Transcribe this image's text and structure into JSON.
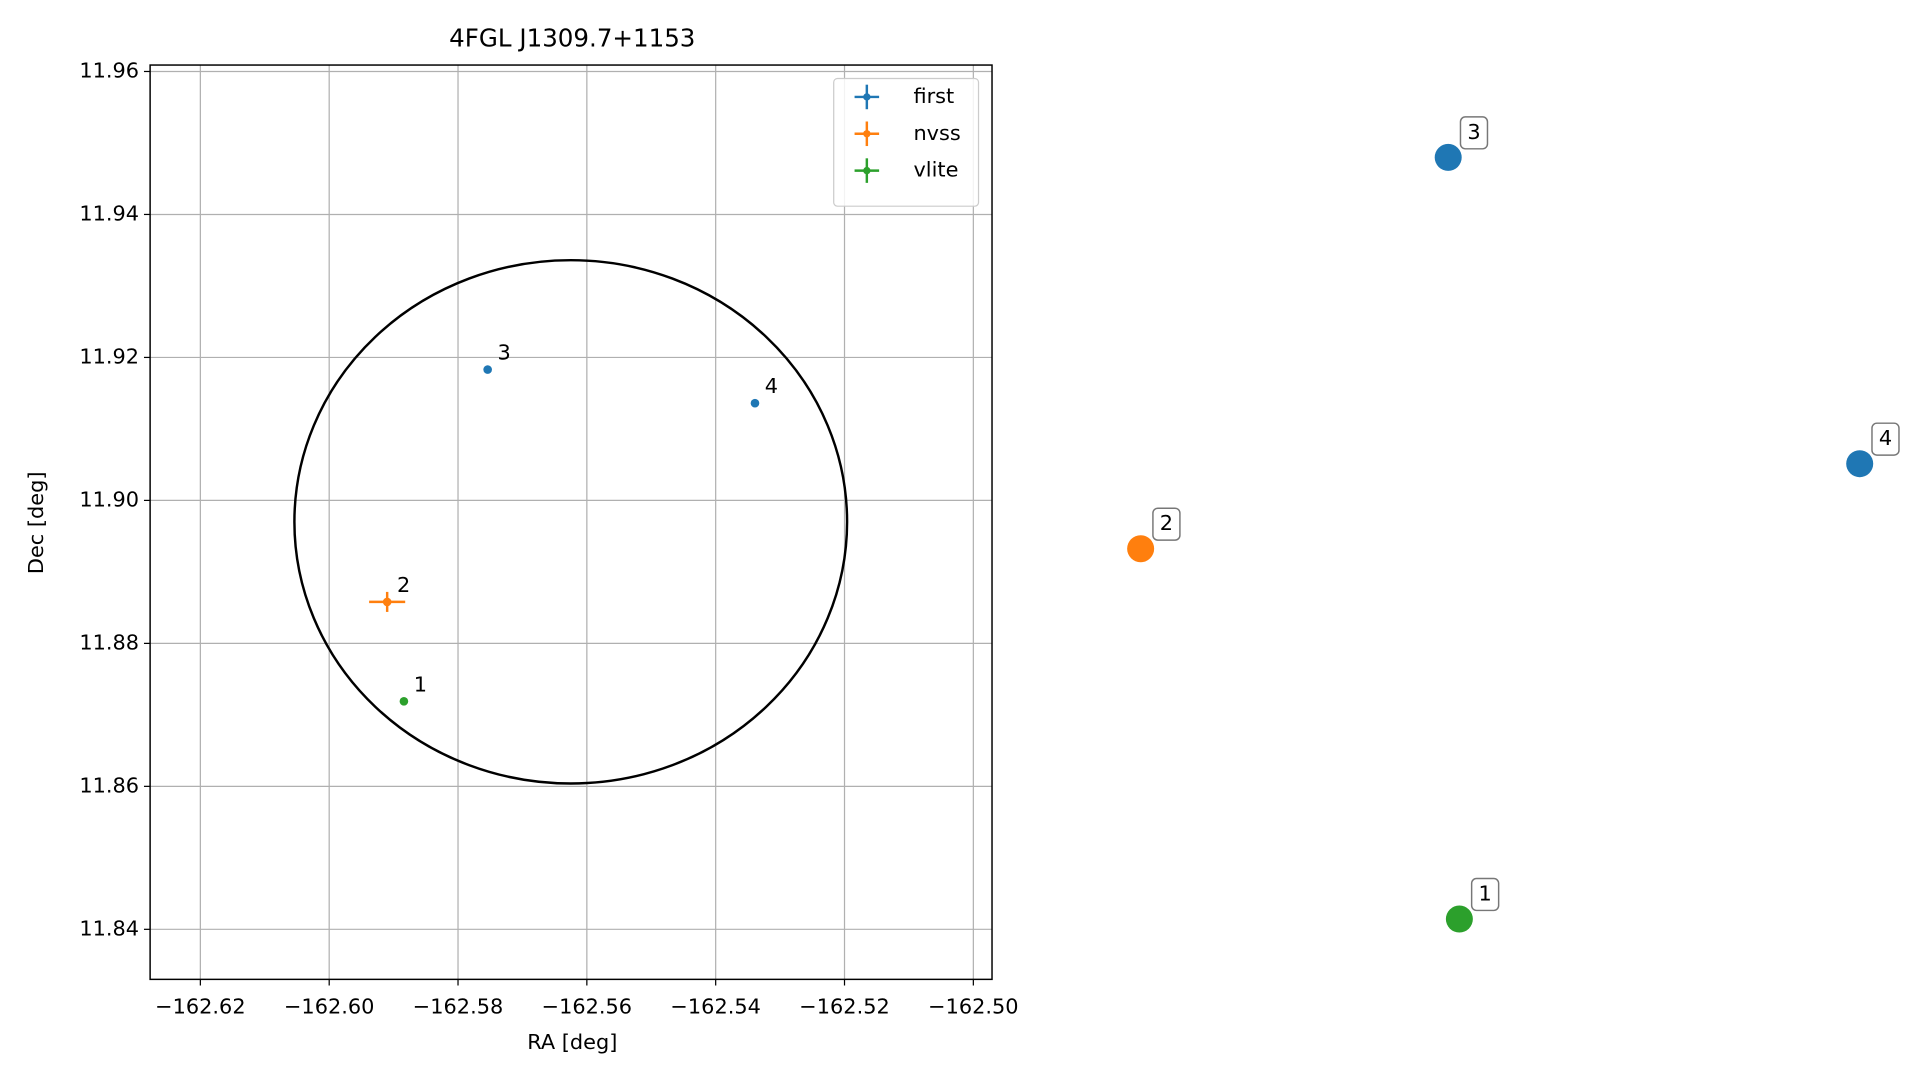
{
  "chart_data": [
    {
      "type": "scatter",
      "title": "4FGL J1309.7+1153",
      "xlabel": "RA [deg]",
      "ylabel": "Dec [deg]",
      "xlim": [
        -162.6278,
        -162.4971
      ],
      "ylim": [
        11.833,
        11.9609
      ],
      "xticks": [
        {
          "value": -162.62,
          "label": "−162.62"
        },
        {
          "value": -162.6,
          "label": "−162.60"
        },
        {
          "value": -162.58,
          "label": "−162.58"
        },
        {
          "value": -162.56,
          "label": "−162.56"
        },
        {
          "value": -162.54,
          "label": "−162.54"
        },
        {
          "value": -162.52,
          "label": "−162.52"
        },
        {
          "value": -162.5,
          "label": "−162.50"
        }
      ],
      "yticks": [
        11.84,
        11.86,
        11.88,
        {
          "value": 11.9,
          "label": "11.90"
        },
        11.92,
        11.94,
        11.96
      ],
      "grid": true,
      "legend": "upper right",
      "ellipse": {
        "ra": -162.5625,
        "dec": 11.897,
        "a": 0.0429,
        "b": 0.0366
      },
      "series": [
        {
          "name": "first",
          "color": "#1f77b4",
          "x": [
            -162.5754,
            -162.5339
          ],
          "y": [
            11.9183,
            11.9136
          ],
          "labels": [
            "3",
            "4"
          ]
        },
        {
          "name": "nvss",
          "color": "#ff7f0e",
          "x": [
            -162.591
          ],
          "y": [
            11.8858
          ],
          "xerr": [
            0.0028
          ],
          "yerr": [
            0.0014
          ],
          "labels": [
            "2"
          ]
        },
        {
          "name": "vlite",
          "color": "#2ca02c",
          "x": [
            -162.5884
          ],
          "y": [
            11.8719
          ],
          "labels": [
            "1"
          ]
        }
      ]
    },
    {
      "type": "scatter",
      "xlim": [
        0,
        1
      ],
      "ylim": [
        0,
        1
      ],
      "series": [
        {
          "color": "#1f77b4",
          "x": [
            0.471,
            0.95
          ],
          "y": [
            0.899,
            0.564
          ],
          "labels": [
            "3",
            "4"
          ]
        },
        {
          "color": "#ff7f0e",
          "x": [
            0.113
          ],
          "y": [
            0.471
          ],
          "labels": [
            "2"
          ]
        },
        {
          "color": "#2ca02c",
          "x": [
            0.484
          ],
          "y": [
            0.066
          ],
          "labels": [
            "1"
          ]
        }
      ]
    }
  ]
}
